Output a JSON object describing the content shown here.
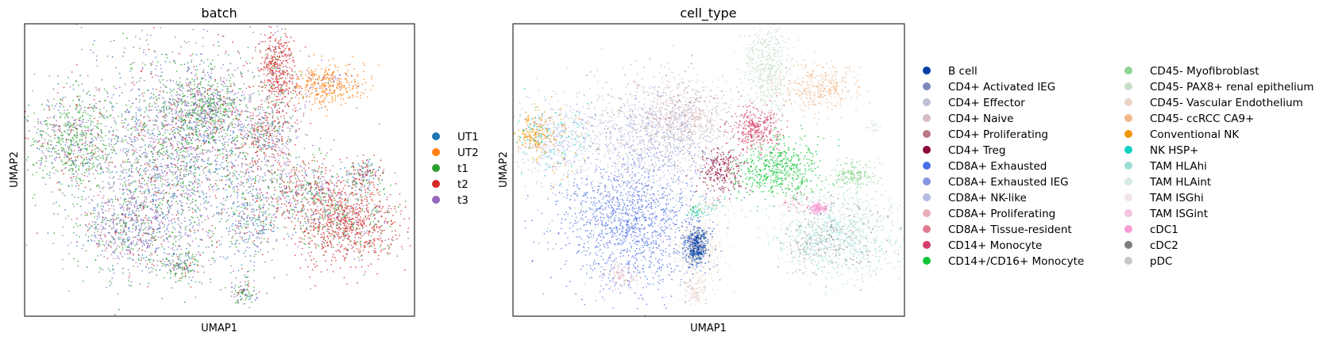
{
  "chart_data": [
    {
      "type": "scatter",
      "title": "batch",
      "xlabel": "UMAP1",
      "ylabel": "UMAP2",
      "xlim": [
        0,
        1
      ],
      "ylim": [
        0,
        1
      ],
      "grid": false,
      "legend_placement": "right",
      "legend_columns": 1,
      "series": [
        {
          "name": "UT1",
          "color": "#1f77b4"
        },
        {
          "name": "UT2",
          "color": "#ff7f0e"
        },
        {
          "name": "t1",
          "color": "#2ca02c"
        },
        {
          "name": "t2",
          "color": "#d62728"
        },
        {
          "name": "t3",
          "color": "#9467bd"
        }
      ],
      "clusters": [
        {
          "x": 0.4,
          "y": 0.57,
          "sx": 0.13,
          "sy": 0.18,
          "n": 2600,
          "weights": [
            2,
            0,
            3,
            1,
            4
          ]
        },
        {
          "x": 0.12,
          "y": 0.6,
          "sx": 0.055,
          "sy": 0.08,
          "n": 650,
          "weights": [
            1,
            0,
            6,
            1,
            2
          ]
        },
        {
          "x": 0.28,
          "y": 0.3,
          "sx": 0.07,
          "sy": 0.07,
          "n": 700,
          "weights": [
            2,
            0,
            2,
            1,
            5
          ]
        },
        {
          "x": 0.46,
          "y": 0.7,
          "sx": 0.05,
          "sy": 0.06,
          "n": 500,
          "weights": [
            1,
            0,
            5,
            1,
            2
          ]
        },
        {
          "x": 0.62,
          "y": 0.62,
          "sx": 0.04,
          "sy": 0.06,
          "n": 380,
          "weights": [
            1,
            0,
            2,
            4,
            3
          ]
        },
        {
          "x": 0.65,
          "y": 0.84,
          "sx": 0.025,
          "sy": 0.07,
          "n": 450,
          "weights": [
            0,
            0,
            1,
            9,
            1
          ]
        },
        {
          "x": 0.78,
          "y": 0.79,
          "sx": 0.045,
          "sy": 0.035,
          "n": 380,
          "weights": [
            0,
            9,
            0,
            0,
            1
          ]
        },
        {
          "x": 0.83,
          "y": 0.32,
          "sx": 0.07,
          "sy": 0.07,
          "n": 950,
          "weights": [
            0,
            0,
            2,
            8,
            1
          ]
        },
        {
          "x": 0.72,
          "y": 0.42,
          "sx": 0.06,
          "sy": 0.06,
          "n": 500,
          "weights": [
            1,
            0,
            3,
            4,
            2
          ]
        },
        {
          "x": 0.87,
          "y": 0.48,
          "sx": 0.025,
          "sy": 0.025,
          "n": 160,
          "weights": [
            2,
            0,
            2,
            3,
            2
          ]
        },
        {
          "x": 0.58,
          "y": 0.33,
          "sx": 0.035,
          "sy": 0.07,
          "n": 260,
          "weights": [
            4,
            0,
            2,
            1,
            3
          ]
        },
        {
          "x": 0.4,
          "y": 0.17,
          "sx": 0.03,
          "sy": 0.03,
          "n": 160,
          "weights": [
            1,
            0,
            6,
            1,
            2
          ]
        },
        {
          "x": 0.56,
          "y": 0.08,
          "sx": 0.018,
          "sy": 0.02,
          "n": 90,
          "weights": [
            1,
            0,
            5,
            1,
            2
          ]
        }
      ]
    },
    {
      "type": "scatter",
      "title": "cell_type",
      "xlabel": "UMAP1",
      "ylabel": "UMAP2",
      "xlim": [
        0,
        1
      ],
      "ylim": [
        0,
        1
      ],
      "grid": false,
      "legend_placement": "right",
      "legend_columns": 2,
      "series": [
        {
          "name": "B cell",
          "color": "#023fa5"
        },
        {
          "name": "CD4+ Activated IEG",
          "color": "#7d87b9"
        },
        {
          "name": "CD4+ Effector",
          "color": "#bec1d4"
        },
        {
          "name": "CD4+ Naive",
          "color": "#d6bcc0"
        },
        {
          "name": "CD4+ Proliferating",
          "color": "#bb7784"
        },
        {
          "name": "CD4+ Treg",
          "color": "#8e063b"
        },
        {
          "name": "CD8A+ Exhausted",
          "color": "#4a6fe3"
        },
        {
          "name": "CD8A+ Exhausted IEG",
          "color": "#8595e1"
        },
        {
          "name": "CD8A+ NK-like",
          "color": "#b5bbe3"
        },
        {
          "name": "CD8A+ Proliferating",
          "color": "#e6afb9"
        },
        {
          "name": "CD8A+ Tissue-resident",
          "color": "#e07b91"
        },
        {
          "name": "CD14+ Monocyte",
          "color": "#d33f6a"
        },
        {
          "name": "CD14+/CD16+ Monocyte",
          "color": "#11c638"
        },
        {
          "name": "CD45- Myofibroblast",
          "color": "#8dd593"
        },
        {
          "name": "CD45- PAX8+ renal epithelium",
          "color": "#c6dec7"
        },
        {
          "name": "CD45- Vascular Endothelium",
          "color": "#ead3c6"
        },
        {
          "name": "CD45- ccRCC CA9+",
          "color": "#f0b98d"
        },
        {
          "name": "Conventional NK",
          "color": "#ef9708"
        },
        {
          "name": "NK HSP+",
          "color": "#0fcfc0"
        },
        {
          "name": "TAM HLAhi",
          "color": "#9cded6"
        },
        {
          "name": "TAM HLAint",
          "color": "#d5eae7"
        },
        {
          "name": "TAM ISGhi",
          "color": "#f3e1eb"
        },
        {
          "name": "TAM ISGint",
          "color": "#f6c4e1"
        },
        {
          "name": "cDC1",
          "color": "#f79cd4"
        },
        {
          "name": "cDC2",
          "color": "#7f7f7f"
        },
        {
          "name": "pDC",
          "color": "#c7c7c7"
        }
      ],
      "clusters": [
        {
          "x": 0.3,
          "y": 0.32,
          "sx": 0.09,
          "sy": 0.11,
          "n": 1400,
          "weights": {
            "6": 8,
            "7": 2,
            "8": 1
          }
        },
        {
          "x": 0.34,
          "y": 0.6,
          "sx": 0.1,
          "sy": 0.1,
          "n": 1100,
          "weights": {
            "2": 3,
            "3": 2,
            "8": 3,
            "1": 1,
            "7": 1
          }
        },
        {
          "x": 0.44,
          "y": 0.69,
          "sx": 0.06,
          "sy": 0.06,
          "n": 600,
          "weights": {
            "3": 6,
            "4": 1,
            "2": 2
          }
        },
        {
          "x": 0.11,
          "y": 0.6,
          "sx": 0.05,
          "sy": 0.07,
          "n": 500,
          "weights": {
            "8": 4,
            "18": 1,
            "2": 2,
            "17": 1
          }
        },
        {
          "x": 0.05,
          "y": 0.62,
          "sx": 0.02,
          "sy": 0.03,
          "n": 180,
          "weights": {
            "17": 8,
            "18": 1
          }
        },
        {
          "x": 0.53,
          "y": 0.5,
          "sx": 0.03,
          "sy": 0.04,
          "n": 260,
          "weights": {
            "5": 6,
            "4": 2
          }
        },
        {
          "x": 0.62,
          "y": 0.64,
          "sx": 0.035,
          "sy": 0.04,
          "n": 330,
          "weights": {
            "11": 8,
            "10": 1
          }
        },
        {
          "x": 0.68,
          "y": 0.5,
          "sx": 0.055,
          "sy": 0.05,
          "n": 550,
          "weights": {
            "12": 9,
            "13": 1
          }
        },
        {
          "x": 0.83,
          "y": 0.28,
          "sx": 0.08,
          "sy": 0.075,
          "n": 1200,
          "weights": {
            "19": 5,
            "20": 4,
            "25": 1,
            "24": 1
          }
        },
        {
          "x": 0.65,
          "y": 0.85,
          "sx": 0.03,
          "sy": 0.08,
          "n": 550,
          "weights": {
            "14": 9,
            "20": 1
          }
        },
        {
          "x": 0.78,
          "y": 0.78,
          "sx": 0.05,
          "sy": 0.04,
          "n": 380,
          "weights": {
            "16": 7,
            "15": 2
          }
        },
        {
          "x": 0.87,
          "y": 0.48,
          "sx": 0.028,
          "sy": 0.025,
          "n": 190,
          "weights": {
            "13": 9
          }
        },
        {
          "x": 0.47,
          "y": 0.24,
          "sx": 0.035,
          "sy": 0.06,
          "n": 320,
          "weights": {
            "15": 7,
            "21": 2
          }
        },
        {
          "x": 0.47,
          "y": 0.09,
          "sx": 0.018,
          "sy": 0.025,
          "n": 110,
          "weights": {
            "15": 6,
            "3": 2
          }
        },
        {
          "x": 0.47,
          "y": 0.36,
          "sx": 0.012,
          "sy": 0.01,
          "n": 50,
          "weights": {
            "18": 3,
            "12": 2,
            "19": 2
          }
        },
        {
          "x": 0.47,
          "y": 0.68,
          "sx": 0.01,
          "sy": 0.01,
          "n": 35,
          "weights": {
            "15": 2,
            "3": 2
          }
        },
        {
          "x": 0.47,
          "y": 0.2,
          "sx": 0.01,
          "sy": 0.012,
          "n": 30,
          "weights": {
            "0": 3,
            "14": 1
          }
        },
        {
          "x": 0.72,
          "y": 0.39,
          "sx": 0.02,
          "sy": 0.02,
          "n": 70,
          "weights": {
            "11": 1,
            "21": 2,
            "22": 3
          }
        },
        {
          "x": 0.51,
          "y": 0.38,
          "sx": 0.02,
          "sy": 0.02,
          "n": 90,
          "weights": {
            "18": 1,
            "14": 2,
            "15": 2
          }
        },
        {
          "x": 0.28,
          "y": 0.14,
          "sx": 0.02,
          "sy": 0.02,
          "n": 90,
          "weights": {
            "9": 5,
            "3": 2
          }
        },
        {
          "x": 0.76,
          "y": 0.24,
          "sx": 0.03,
          "sy": 0.03,
          "n": 130,
          "weights": {
            "24": 1,
            "25": 3,
            "19": 2
          }
        },
        {
          "x": 0.92,
          "y": 0.65,
          "sx": 0.01,
          "sy": 0.012,
          "n": 30,
          "weights": {
            "20": 2,
            "14": 2,
            "15": 1
          }
        }
      ],
      "hot_spots": [
        {
          "x": 0.47,
          "y": 0.24,
          "sx": 0.015,
          "sy": 0.03,
          "n": 420,
          "series": 0
        },
        {
          "x": 0.78,
          "y": 0.37,
          "sx": 0.012,
          "sy": 0.01,
          "n": 140,
          "series": 23
        }
      ]
    }
  ]
}
